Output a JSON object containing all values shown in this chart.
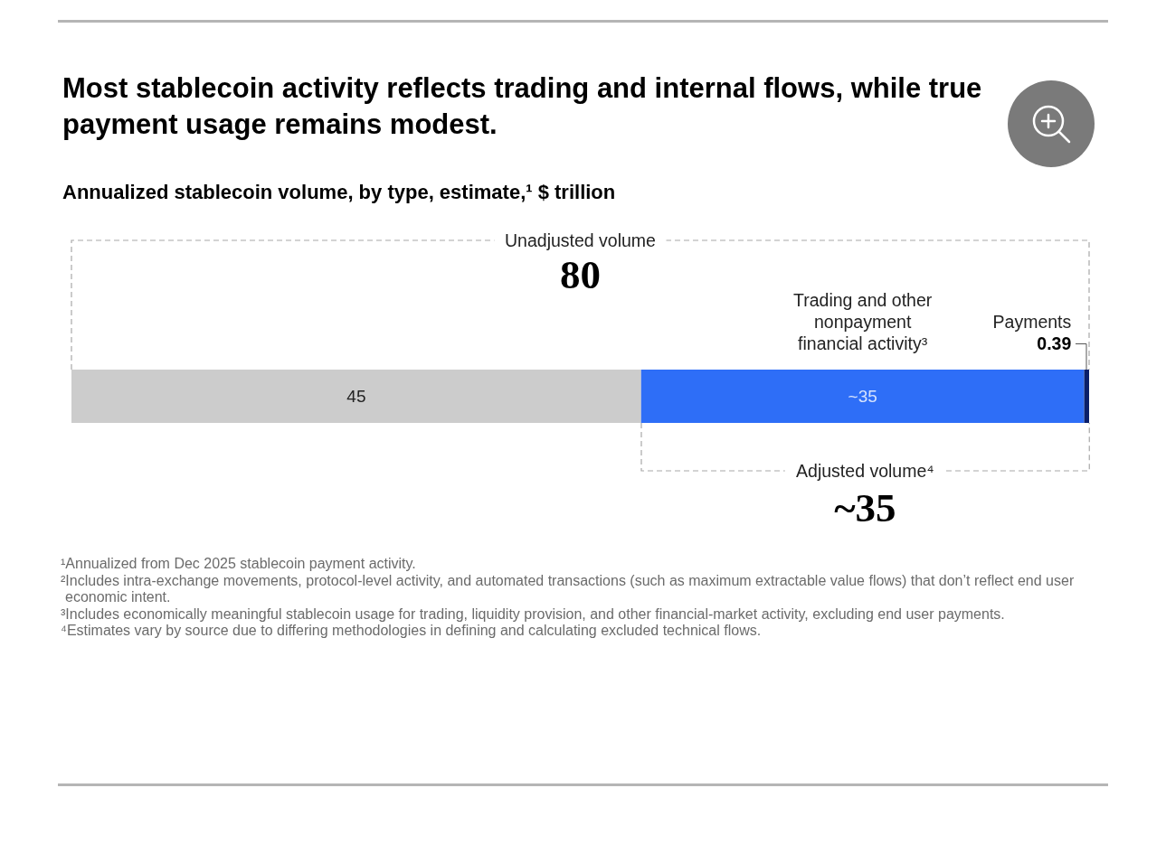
{
  "chart_data": {
    "type": "bar",
    "orientation": "horizontal",
    "stacked": true,
    "tick_labels": false,
    "title": "Most stablecoin activity reflects trading and internal flows, while true payment usage remains modest.",
    "subtitle": "Annualized stablecoin volume, by type, estimate,¹ $ trillion",
    "categories": [
      null
    ],
    "series": [
      {
        "color": "#cccccc",
        "values": [
          45
        ],
        "value_labels": [
          "45"
        ]
      },
      {
        "name": "Trading and other nonpayment financial activity³",
        "color": "#2e6ef7",
        "values": [
          35
        ],
        "value_labels": [
          "~35"
        ]
      },
      {
        "name": "Payments",
        "color": "#0a1f6b",
        "values": [
          0.39
        ],
        "value_labels": [
          "0.39"
        ]
      }
    ],
    "annotations": [
      "Unadjusted volume",
      "80",
      "Adjusted volume⁴",
      "~35",
      "¹Annualized from Dec 2025 stablecoin payment activity.",
      "²Includes intra-exchange movements, protocol-level activity, and automated transactions (such as maximum extractable value flows) that don’t reflect end user economic intent.",
      "³Includes economically meaningful stablecoin usage for trading, liquidity provision, and other financial-market activity, excluding end user payments.",
      "⁴Estimates vary by source due to differing methodologies in defining and calculating excluded technical flows."
    ]
  }
}
